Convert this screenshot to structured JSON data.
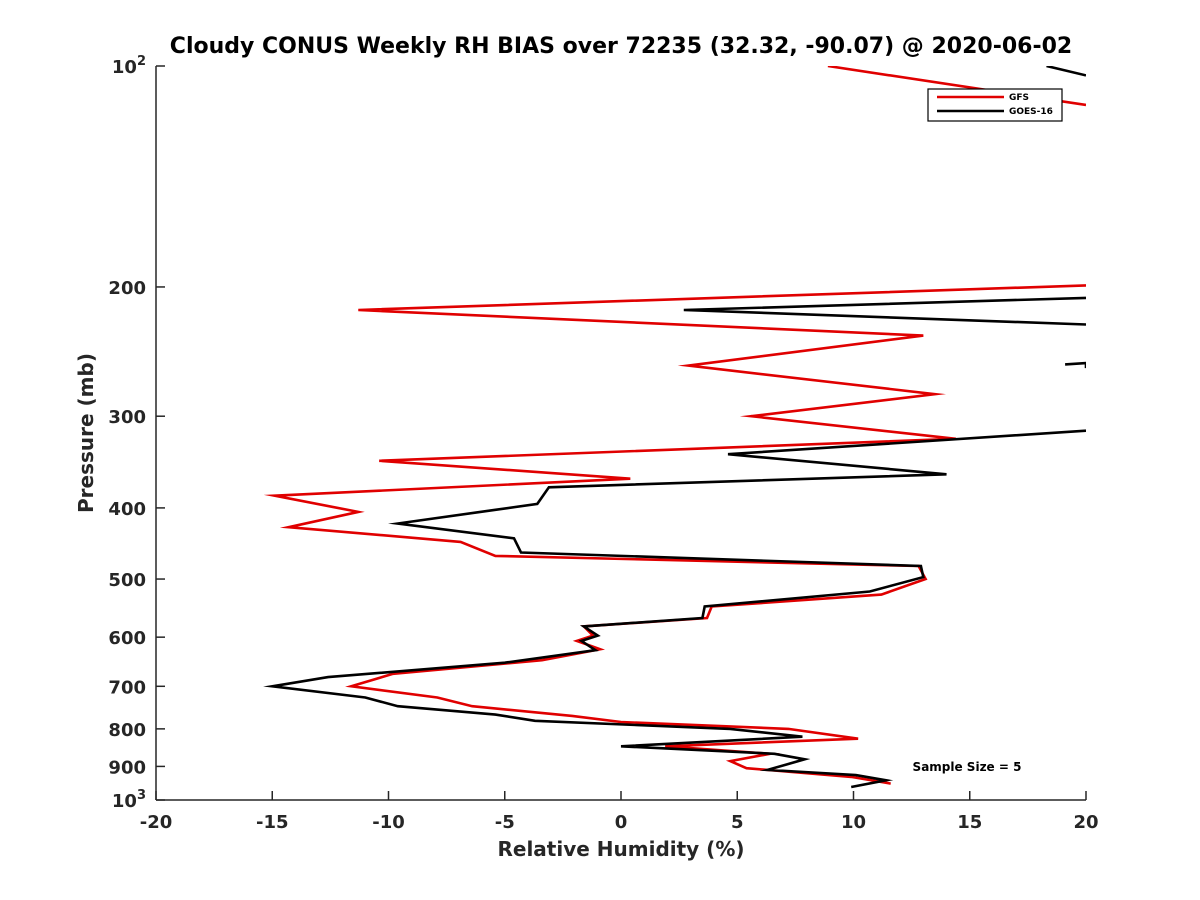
{
  "chart_data": {
    "type": "line",
    "title": "Cloudy CONUS Weekly RH BIAS over 72235 (32.32, -90.07) @ 2020-06-02",
    "xlabel": "Relative Humidity (%)",
    "ylabel": "Pressure (mb)",
    "xlim": [
      -20,
      20
    ],
    "ylim": [
      100,
      1000
    ],
    "yscale": "log",
    "yreversed": true,
    "xticks": [
      -20,
      -15,
      -10,
      -5,
      0,
      5,
      10,
      15,
      20
    ],
    "xtick_labels": [
      "-20",
      "-15",
      "-10",
      "-5",
      "0",
      "5",
      "10",
      "15",
      "20"
    ],
    "yticks": [
      {
        "value": 100,
        "base": "10",
        "exp": "2"
      },
      {
        "value": 200,
        "label": "200"
      },
      {
        "value": 300,
        "label": "300"
      },
      {
        "value": 400,
        "label": "400"
      },
      {
        "value": 500,
        "label": "500"
      },
      {
        "value": 600,
        "label": "600"
      },
      {
        "value": 700,
        "label": "700"
      },
      {
        "value": 800,
        "label": "800"
      },
      {
        "value": 900,
        "label": "900"
      },
      {
        "value": 1000,
        "base": "10",
        "exp": "3"
      }
    ],
    "legend_position": "top-right",
    "annotation": "Sample Size = 5",
    "series": [
      {
        "name": "GFS",
        "color": "#e00000",
        "segments": [
          [
            [
              8.9,
              100
            ],
            [
              20,
              113
            ]
          ],
          [
            [
              20,
              199
            ],
            [
              -11.3,
              215
            ],
            [
              13,
              233
            ],
            [
              2.9,
              256
            ],
            [
              13.5,
              280
            ],
            [
              5.6,
              300
            ],
            [
              14.4,
              322
            ],
            [
              -10.4,
              345
            ],
            [
              0.4,
              365
            ],
            [
              -14.9,
              385
            ],
            [
              -11.3,
              405
            ],
            [
              -14.3,
              425
            ],
            [
              -6.9,
              445
            ],
            [
              -5.4,
              465
            ],
            [
              12.8,
              480
            ],
            [
              13.1,
              500
            ],
            [
              11.2,
              525
            ],
            [
              3.9,
              545
            ],
            [
              3.7,
              565
            ],
            [
              -1.6,
              580
            ],
            [
              -1.2,
              597
            ],
            [
              -1.9,
              607
            ],
            [
              -0.9,
              623
            ],
            [
              -3.4,
              645
            ],
            [
              -9.8,
              673
            ],
            [
              -11.6,
              700
            ],
            [
              -7.9,
              725
            ],
            [
              -6.4,
              745
            ],
            [
              -2.1,
              768
            ],
            [
              0,
              783
            ],
            [
              7.2,
              800
            ],
            [
              10.2,
              825
            ],
            [
              1.9,
              845
            ],
            [
              6.4,
              865
            ],
            [
              4.7,
              885
            ],
            [
              5.4,
              905
            ],
            [
              9.9,
              930
            ],
            [
              11.6,
              950
            ]
          ]
        ]
      },
      {
        "name": "GOES-16",
        "color": "#000000",
        "segments": [
          [
            [
              18.3,
              100
            ],
            [
              20,
              103
            ]
          ],
          [
            [
              20,
              207
            ],
            [
              2.7,
              215
            ],
            [
              20,
              225
            ]
          ],
          [
            [
              19.1,
              255
            ],
            [
              20,
              254
            ],
            [
              20,
              258
            ]
          ],
          [
            [
              20,
              314
            ],
            [
              4.6,
              338
            ],
            [
              14,
              360
            ],
            [
              -3.1,
              375
            ],
            [
              -3.6,
              395
            ],
            [
              -9.6,
              420
            ],
            [
              -4.6,
              440
            ],
            [
              -4.3,
              460
            ],
            [
              12.9,
              480
            ],
            [
              13,
              497
            ],
            [
              10.7,
              520
            ],
            [
              3.6,
              545
            ],
            [
              3.5,
              565
            ],
            [
              -1.6,
              580
            ],
            [
              -1,
              597
            ],
            [
              -1.7,
              607
            ],
            [
              -1.1,
              625
            ],
            [
              -5,
              650
            ],
            [
              -12.6,
              680
            ],
            [
              -15,
              700
            ],
            [
              -11,
              725
            ],
            [
              -9.6,
              745
            ],
            [
              -5.4,
              765
            ],
            [
              -3.7,
              780
            ],
            [
              4.7,
              800
            ],
            [
              7.8,
              820
            ],
            [
              0,
              845
            ],
            [
              6.6,
              865
            ],
            [
              7.9,
              880
            ],
            [
              7.1,
              895
            ],
            [
              6.3,
              910
            ],
            [
              10.1,
              925
            ],
            [
              11.4,
              940
            ],
            [
              9.9,
              960
            ]
          ]
        ]
      }
    ]
  }
}
